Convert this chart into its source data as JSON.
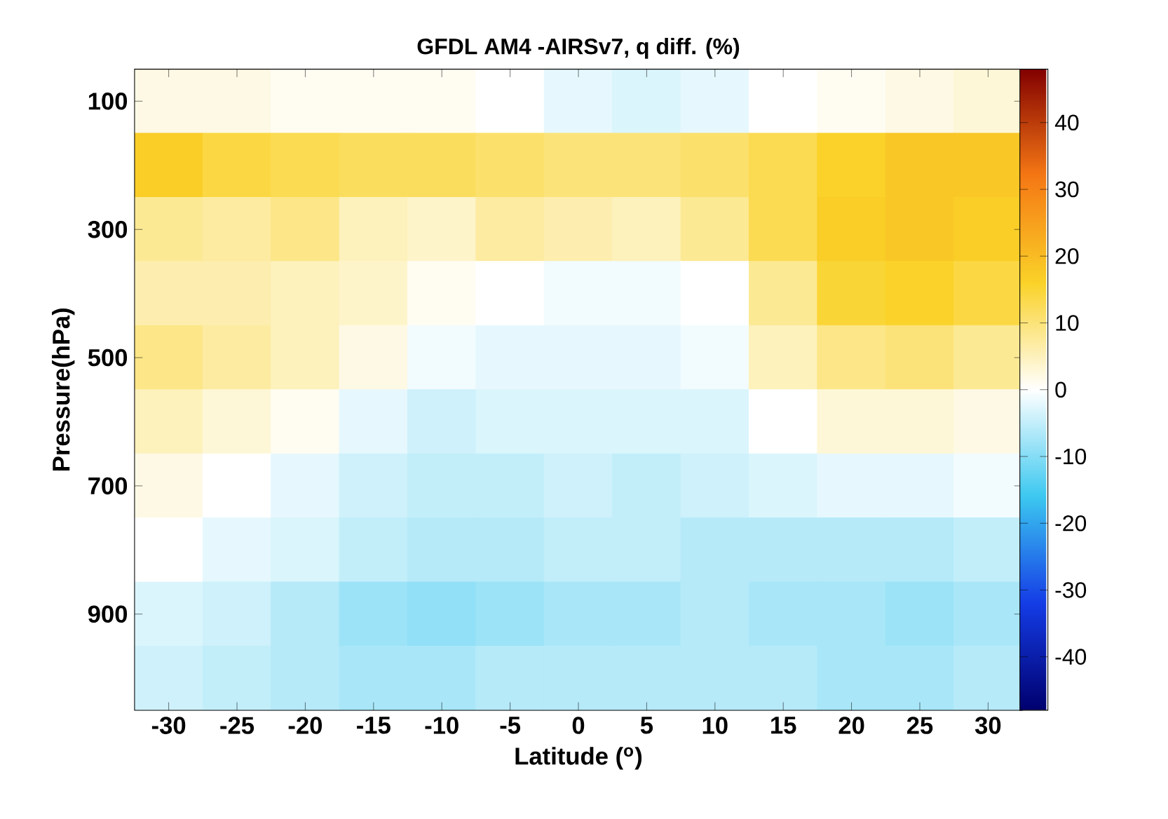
{
  "chart_data": {
    "type": "heatmap",
    "title": "GFDL AM4 -AIRSv7, q diff. (%)",
    "xlabel": "Latitude ($^{o}$)",
    "ylabel": "Pressure(hPa)",
    "categories": [
      "-30",
      "-25",
      "-20",
      "-15",
      "-10",
      "-5",
      "0",
      "5",
      "10",
      "15",
      "20",
      "25",
      "30"
    ],
    "y_categories": [
      "100",
      null,
      "300",
      null,
      "500",
      null,
      "700",
      null,
      "900",
      null
    ],
    "cells": [
      [
        2,
        2,
        1,
        1,
        1,
        0,
        -2,
        -3,
        -2,
        0,
        1,
        2,
        3
      ],
      [
        17,
        14,
        13,
        12,
        12,
        11,
        10,
        10,
        11,
        13,
        16,
        18,
        18
      ],
      [
        8,
        7,
        9,
        5,
        4,
        7,
        6,
        5,
        8,
        13,
        17,
        18,
        17
      ],
      [
        6,
        6,
        5,
        4,
        1,
        0,
        -1,
        -1,
        0,
        8,
        15,
        16,
        14
      ],
      [
        9,
        7,
        5,
        2,
        -1,
        -2,
        -2,
        -2,
        -1,
        5,
        9,
        10,
        8
      ],
      [
        5,
        3,
        1,
        -2,
        -4,
        -3,
        -3,
        -3,
        -3,
        0,
        3,
        3,
        2
      ],
      [
        2,
        0,
        -2,
        -4,
        -5,
        -5,
        -4,
        -5,
        -4,
        -3,
        -2,
        -2,
        -1
      ],
      [
        0,
        -2,
        -3,
        -5,
        -6,
        -6,
        -5,
        -5,
        -6,
        -6,
        -6,
        -6,
        -5
      ],
      [
        -3,
        -4,
        -6,
        -8,
        -9,
        -8,
        -7,
        -7,
        -6,
        -7,
        -7,
        -8,
        -7
      ],
      [
        -4,
        -5,
        -6,
        -7,
        -7,
        -6,
        -6,
        -6,
        -6,
        -6,
        -7,
        -7,
        -6
      ]
    ],
    "clim": [
      -48,
      48
    ],
    "cticks": [
      -40,
      -30,
      -20,
      -10,
      0,
      10,
      20,
      30,
      40
    ]
  }
}
